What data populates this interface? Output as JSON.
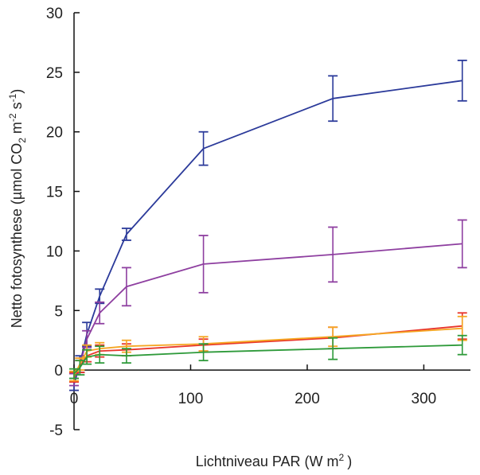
{
  "chart_data": {
    "type": "line",
    "title": "",
    "xlabel": "Lichtniveau PAR (W m",
    "xlabel_sup": "2",
    "xlabel_end": ")",
    "ylabel_main": "Netto fotosynthese (µmol CO",
    "ylabel_sub": "2",
    "ylabel_m": " m",
    "ylabel_sup1": "-2",
    "ylabel_s": " s",
    "ylabel_sup2": "-1",
    "ylabel_end": ")",
    "xlim": [
      0,
      340
    ],
    "ylim": [
      -5,
      30
    ],
    "xticks": [
      0,
      100,
      200,
      300
    ],
    "yticks": [
      -5,
      0,
      5,
      10,
      15,
      20,
      25,
      30
    ],
    "legend": "none",
    "grid": false,
    "x": [
      0,
      5,
      11,
      22,
      45,
      111,
      222,
      333
    ],
    "series": [
      {
        "color": "#2b3a9a",
        "y": [
          -1.2,
          0.5,
          3.0,
          6.2,
          11.4,
          18.6,
          22.8,
          24.3
        ],
        "err": [
          0.5,
          0.7,
          1.0,
          0.6,
          0.5,
          1.4,
          1.9,
          1.7
        ]
      },
      {
        "color": "#8e3fa0",
        "y": [
          -0.8,
          0.4,
          2.6,
          4.8,
          7.0,
          8.9,
          9.7,
          10.6
        ],
        "err": [
          0.5,
          0.6,
          0.7,
          0.9,
          1.6,
          2.4,
          2.3,
          2.0
        ]
      },
      {
        "color": "#e8342a",
        "y": [
          -0.6,
          0.3,
          1.2,
          1.6,
          1.7,
          2.1,
          2.7,
          3.7
        ],
        "err": [
          0.4,
          0.5,
          0.5,
          0.5,
          0.5,
          0.5,
          0.9,
          1.1
        ]
      },
      {
        "color": "#f5a623",
        "y": [
          -0.5,
          0.5,
          1.6,
          1.8,
          2.0,
          2.2,
          2.8,
          3.5
        ],
        "err": [
          0.4,
          0.5,
          0.5,
          0.5,
          0.5,
          0.6,
          0.8,
          1.0
        ]
      },
      {
        "color": "#2e9a3a",
        "y": [
          -0.3,
          0.2,
          1.1,
          1.3,
          1.2,
          1.5,
          1.8,
          2.1
        ],
        "err": [
          0.4,
          0.6,
          0.6,
          0.7,
          0.6,
          0.7,
          0.9,
          0.8
        ]
      }
    ]
  }
}
